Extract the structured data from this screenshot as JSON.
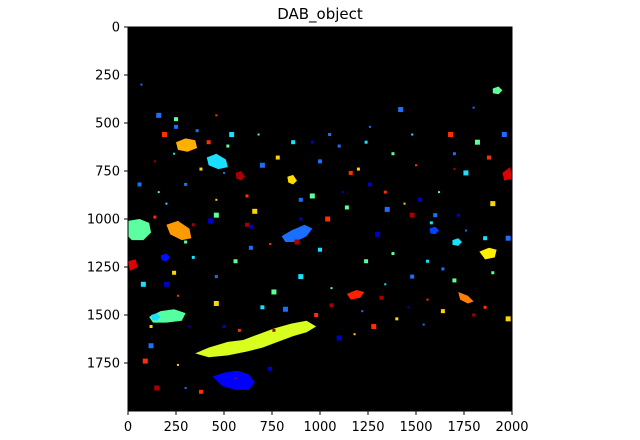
{
  "chart_data": {
    "type": "heatmap",
    "title": "DAB_object",
    "xlabel": "",
    "ylabel": "",
    "xlim": [
      0,
      2000
    ],
    "ylim": [
      2000,
      0
    ],
    "x_ticks": [
      0,
      250,
      500,
      750,
      1000,
      1250,
      1500,
      1750,
      2000
    ],
    "y_ticks": [
      0,
      250,
      500,
      750,
      1000,
      1250,
      1500,
      1750
    ],
    "x_tick_labels": [
      "0",
      "250",
      "500",
      "750",
      "1000",
      "1250",
      "1500",
      "1750",
      "2000"
    ],
    "y_tick_labels": [
      "0",
      "250",
      "500",
      "750",
      "1000",
      "1250",
      "1500",
      "1750"
    ],
    "background_color": "#000000",
    "colormap": "jet",
    "grid": false,
    "legend": "none",
    "objects": [
      {
        "label": "large-yellow-green",
        "color": "#d9ff1f",
        "points": [
          [
            350,
            1700
          ],
          [
            420,
            1670
          ],
          [
            520,
            1640
          ],
          [
            600,
            1630
          ],
          [
            680,
            1600
          ],
          [
            760,
            1570
          ],
          [
            850,
            1545
          ],
          [
            930,
            1530
          ],
          [
            980,
            1560
          ],
          [
            930,
            1590
          ],
          [
            860,
            1610
          ],
          [
            780,
            1640
          ],
          [
            700,
            1670
          ],
          [
            620,
            1690
          ],
          [
            520,
            1710
          ],
          [
            420,
            1720
          ]
        ]
      },
      {
        "label": "bottom-blue",
        "color": "#0000ff",
        "points": [
          [
            440,
            1820
          ],
          [
            500,
            1800
          ],
          [
            570,
            1790
          ],
          [
            630,
            1810
          ],
          [
            660,
            1850
          ],
          [
            630,
            1890
          ],
          [
            560,
            1890
          ],
          [
            490,
            1870
          ]
        ]
      },
      {
        "label": "center-blue",
        "color": "#1a6fff",
        "points": [
          [
            800,
            1090
          ],
          [
            850,
            1060
          ],
          [
            920,
            1030
          ],
          [
            960,
            1050
          ],
          [
            930,
            1090
          ],
          [
            870,
            1120
          ],
          [
            820,
            1120
          ]
        ]
      },
      {
        "label": "left-aquamarine",
        "color": "#5cffa0",
        "points": [
          [
            0,
            1010
          ],
          [
            60,
            1000
          ],
          [
            110,
            1020
          ],
          [
            120,
            1070
          ],
          [
            80,
            1110
          ],
          [
            20,
            1110
          ],
          [
            0,
            1090
          ]
        ]
      },
      {
        "label": "left-green-lower",
        "color": "#55ff9f",
        "points": [
          [
            110,
            1510
          ],
          [
            170,
            1480
          ],
          [
            240,
            1470
          ],
          [
            300,
            1490
          ],
          [
            280,
            1530
          ],
          [
            200,
            1540
          ],
          [
            130,
            1540
          ]
        ]
      },
      {
        "label": "top-orange",
        "color": "#ffb000",
        "points": [
          [
            250,
            600
          ],
          [
            300,
            580
          ],
          [
            350,
            590
          ],
          [
            360,
            630
          ],
          [
            310,
            650
          ],
          [
            260,
            640
          ]
        ]
      },
      {
        "label": "cyan-upper",
        "color": "#1ae0ff",
        "points": [
          [
            410,
            680
          ],
          [
            460,
            660
          ],
          [
            510,
            690
          ],
          [
            520,
            730
          ],
          [
            470,
            740
          ],
          [
            420,
            720
          ]
        ]
      },
      {
        "label": "orange-mid",
        "color": "#ff9a00",
        "points": [
          [
            200,
            1030
          ],
          [
            260,
            1010
          ],
          [
            320,
            1050
          ],
          [
            330,
            1100
          ],
          [
            280,
            1110
          ],
          [
            220,
            1080
          ]
        ]
      },
      {
        "label": "right-yellow",
        "color": "#ffef00",
        "points": [
          [
            1830,
            1170
          ],
          [
            1880,
            1150
          ],
          [
            1920,
            1160
          ],
          [
            1910,
            1200
          ],
          [
            1860,
            1210
          ]
        ]
      },
      {
        "label": "right-red",
        "color": "#e00000",
        "points": [
          [
            1950,
            760
          ],
          [
            1990,
            730
          ],
          [
            2000,
            790
          ],
          [
            1960,
            800
          ]
        ]
      },
      {
        "label": "left-red",
        "color": "#e00000",
        "points": [
          [
            0,
            1220
          ],
          [
            40,
            1210
          ],
          [
            50,
            1250
          ],
          [
            10,
            1270
          ]
        ]
      },
      {
        "label": "mid-red",
        "color": "#ff2000",
        "points": [
          [
            1140,
            1390
          ],
          [
            1190,
            1370
          ],
          [
            1230,
            1380
          ],
          [
            1210,
            1410
          ],
          [
            1160,
            1420
          ]
        ]
      },
      {
        "label": "right-green-top",
        "color": "#5cff9a",
        "points": [
          [
            1900,
            320
          ],
          [
            1930,
            310
          ],
          [
            1950,
            330
          ],
          [
            1930,
            350
          ],
          [
            1900,
            345
          ]
        ]
      },
      {
        "label": "cyan-right",
        "color": "#1ae0ff",
        "points": [
          [
            1690,
            1110
          ],
          [
            1720,
            1100
          ],
          [
            1740,
            1120
          ],
          [
            1720,
            1140
          ],
          [
            1690,
            1135
          ]
        ]
      },
      {
        "label": "orange-right",
        "color": "#ff8000",
        "points": [
          [
            1720,
            1380
          ],
          [
            1770,
            1400
          ],
          [
            1800,
            1430
          ],
          [
            1770,
            1440
          ],
          [
            1730,
            1420
          ]
        ]
      },
      {
        "label": "yellow-small",
        "color": "#ffdd00",
        "points": [
          [
            830,
            780
          ],
          [
            860,
            770
          ],
          [
            880,
            800
          ],
          [
            860,
            820
          ],
          [
            835,
            810
          ]
        ]
      },
      {
        "label": "dark-red-upper",
        "color": "#a80000",
        "points": [
          [
            560,
            760
          ],
          [
            590,
            750
          ],
          [
            610,
            780
          ],
          [
            590,
            800
          ],
          [
            565,
            790
          ]
        ]
      },
      {
        "label": "blue-right",
        "color": "#0040ff",
        "points": [
          [
            1570,
            1050
          ],
          [
            1600,
            1040
          ],
          [
            1620,
            1060
          ],
          [
            1600,
            1080
          ],
          [
            1575,
            1075
          ]
        ]
      },
      {
        "label": "cyan-left",
        "color": "#1ae0ff",
        "points": [
          [
            120,
            1500
          ],
          [
            150,
            1490
          ],
          [
            170,
            1510
          ],
          [
            150,
            1530
          ],
          [
            125,
            1525
          ]
        ]
      },
      {
        "label": "blue-left-mid",
        "color": "#0010ff",
        "points": [
          [
            170,
            1190
          ],
          [
            200,
            1180
          ],
          [
            220,
            1200
          ],
          [
            200,
            1220
          ],
          [
            175,
            1215
          ]
        ]
      }
    ],
    "specks": [
      {
        "color": "#1a6fff",
        "points": [
          [
            70,
            300
          ],
          [
            160,
            460
          ],
          [
            250,
            520
          ],
          [
            360,
            540
          ],
          [
            500,
            760
          ],
          [
            700,
            720
          ],
          [
            1000,
            700
          ],
          [
            1050,
            560
          ],
          [
            1260,
            520
          ],
          [
            1420,
            430
          ],
          [
            1600,
            980
          ],
          [
            1700,
            660
          ],
          [
            1800,
            420
          ],
          [
            1960,
            560
          ],
          [
            1480,
            1300
          ],
          [
            1640,
            1260
          ],
          [
            1220,
            1480
          ],
          [
            820,
            1470
          ],
          [
            640,
            1150
          ],
          [
            460,
            1300
          ],
          [
            300,
            1880
          ],
          [
            120,
            1660
          ],
          [
            60,
            820
          ],
          [
            300,
            820
          ],
          [
            1760,
            1060
          ],
          [
            1350,
            950
          ],
          [
            900,
            900
          ],
          [
            1100,
            620
          ],
          [
            1540,
            1550
          ],
          [
            1980,
            1100
          ]
        ]
      },
      {
        "color": "#ff3000",
        "points": [
          [
            190,
            560
          ],
          [
            420,
            600
          ],
          [
            620,
            880
          ],
          [
            740,
            1130
          ],
          [
            1040,
            1000
          ],
          [
            1160,
            760
          ],
          [
            1340,
            860
          ],
          [
            1500,
            720
          ],
          [
            1680,
            560
          ],
          [
            1880,
            680
          ],
          [
            1860,
            1460
          ],
          [
            1560,
            1420
          ],
          [
            1280,
            1560
          ],
          [
            980,
            1500
          ],
          [
            580,
            1580
          ],
          [
            260,
            1400
          ],
          [
            90,
            1740
          ],
          [
            380,
            1900
          ],
          [
            140,
            990
          ],
          [
            460,
            460
          ]
        ]
      },
      {
        "color": "#5cff9a",
        "points": [
          [
            250,
            480
          ],
          [
            520,
            620
          ],
          [
            680,
            560
          ],
          [
            960,
            880
          ],
          [
            1140,
            940
          ],
          [
            1380,
            660
          ],
          [
            1620,
            860
          ],
          [
            1820,
            600
          ],
          [
            1700,
            1320
          ],
          [
            1380,
            1180
          ],
          [
            1060,
            1360
          ],
          [
            760,
            1380
          ],
          [
            560,
            1220
          ],
          [
            300,
            1120
          ],
          [
            160,
            860
          ],
          [
            460,
            980
          ],
          [
            1240,
            1220
          ],
          [
            1900,
            1280
          ]
        ]
      },
      {
        "color": "#ffd400",
        "points": [
          [
            380,
            740
          ],
          [
            460,
            900
          ],
          [
            660,
            960
          ],
          [
            780,
            680
          ],
          [
            1200,
            740
          ],
          [
            1440,
            920
          ],
          [
            1900,
            920
          ],
          [
            1640,
            1480
          ],
          [
            1400,
            1520
          ],
          [
            1180,
            1600
          ],
          [
            460,
            1440
          ],
          [
            240,
            1280
          ],
          [
            120,
            1560
          ],
          [
            260,
            1760
          ],
          [
            1980,
            1520
          ]
        ]
      },
      {
        "color": "#1ae0ff",
        "points": [
          [
            240,
            660
          ],
          [
            540,
            560
          ],
          [
            860,
            600
          ],
          [
            1240,
            600
          ],
          [
            1480,
            560
          ],
          [
            1760,
            760
          ],
          [
            1860,
            1100
          ],
          [
            1560,
            1220
          ],
          [
            1340,
            1340
          ],
          [
            900,
            1300
          ],
          [
            700,
            1460
          ],
          [
            340,
            1200
          ],
          [
            200,
            920
          ],
          [
            80,
            1340
          ],
          [
            1000,
            1160
          ],
          [
            1580,
            1020
          ]
        ]
      },
      {
        "color": "#0000cc",
        "points": [
          [
            430,
            1010
          ],
          [
            640,
            1040
          ],
          [
            900,
            1000
          ],
          [
            1120,
            860
          ],
          [
            1300,
            1080
          ],
          [
            1520,
            900
          ],
          [
            1720,
            980
          ],
          [
            1460,
            1460
          ],
          [
            1100,
            1620
          ],
          [
            740,
            1780
          ],
          [
            500,
            1560
          ],
          [
            320,
            1560
          ],
          [
            200,
            1340
          ],
          [
            1260,
            820
          ],
          [
            960,
            600
          ]
        ]
      },
      {
        "color": "#a80000",
        "points": [
          [
            620,
            1030
          ],
          [
            340,
            1030
          ],
          [
            140,
            700
          ],
          [
            880,
            1120
          ],
          [
            1320,
            1410
          ],
          [
            1800,
            1500
          ],
          [
            1700,
            740
          ],
          [
            1480,
            980
          ],
          [
            1060,
            1450
          ],
          [
            760,
            1580
          ],
          [
            560,
            1830
          ],
          [
            150,
            1880
          ]
        ]
      }
    ]
  }
}
